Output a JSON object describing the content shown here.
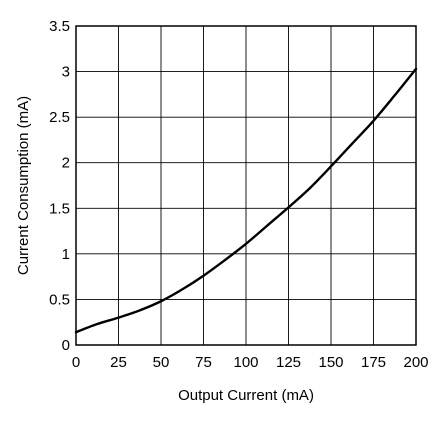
{
  "chart_data": {
    "type": "line",
    "title": "",
    "xlabel": "Output Current (mA)",
    "ylabel": "Current Consumption (mA)",
    "xlim": [
      0,
      200
    ],
    "ylim": [
      0,
      3.5
    ],
    "x_ticks": [
      0,
      25,
      50,
      75,
      100,
      125,
      150,
      175,
      200
    ],
    "y_ticks": [
      0,
      0.5,
      1,
      1.5,
      2,
      2.5,
      3,
      3.5
    ],
    "x_tick_labels": [
      "0",
      "25",
      "50",
      "75",
      "100",
      "125",
      "150",
      "175",
      "200"
    ],
    "y_tick_labels": [
      "0",
      "0.5",
      "1",
      "1.5",
      "2",
      "2.5",
      "3",
      "3.5"
    ],
    "grid": true,
    "line_color": "#000000",
    "series": [
      {
        "x": [
          0,
          12.5,
          25,
          37.5,
          50,
          62.5,
          75,
          87.5,
          100,
          112.5,
          125,
          137.5,
          150,
          162.5,
          175,
          187.5,
          200
        ],
        "y": [
          0.14,
          0.23,
          0.3,
          0.38,
          0.48,
          0.61,
          0.76,
          0.93,
          1.11,
          1.31,
          1.51,
          1.72,
          1.96,
          2.21,
          2.46,
          2.74,
          3.03
        ]
      }
    ]
  }
}
